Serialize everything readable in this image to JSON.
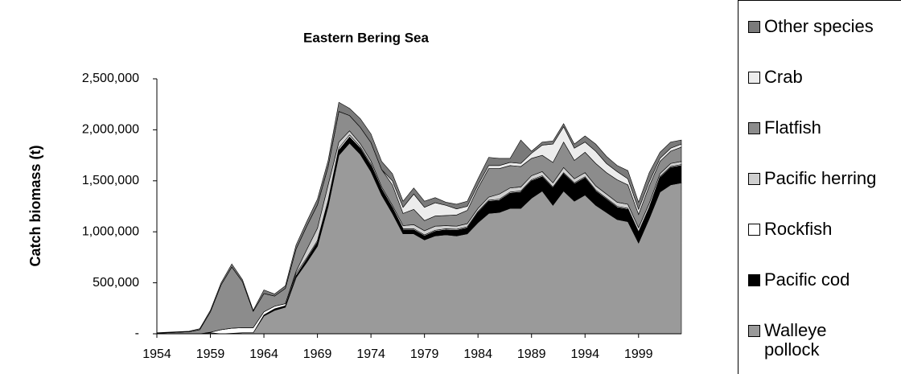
{
  "chart_data": {
    "type": "stacked_area",
    "title": "Eastern Bering Sea",
    "y_label": "Catch biomass (t)",
    "categories": [
      "1954",
      null,
      null,
      null,
      null,
      "1959",
      null,
      null,
      null,
      null,
      "1964",
      null,
      null,
      null,
      null,
      "1969",
      null,
      null,
      null,
      null,
      "1974",
      null,
      null,
      null,
      null,
      "1979",
      null,
      null,
      null,
      null,
      "1984",
      null,
      null,
      null,
      null,
      "1989",
      null,
      null,
      null,
      null,
      "1994",
      null,
      null,
      null,
      null,
      "1999",
      null,
      null,
      null,
      null
    ],
    "ylim": [
      0,
      2500000
    ],
    "yticks": [
      {
        "value": 0,
        "label": "-"
      },
      {
        "value": 500000,
        "label": "500,000"
      },
      {
        "value": 1000000,
        "label": "1,000,000"
      },
      {
        "value": 1500000,
        "label": "1,500,000"
      },
      {
        "value": 2000000,
        "label": "2,000,000"
      },
      {
        "value": 2500000,
        "label": "2,500,000"
      }
    ],
    "series": [
      {
        "name": "Walleye pollock",
        "color": "#9a9a9a",
        "values": [
          0,
          0,
          0,
          0,
          0,
          10000,
          0,
          5000,
          10000,
          10000,
          175000,
          230000,
          260000,
          550000,
          700000,
          860000,
          1250000,
          1750000,
          1870000,
          1760000,
          1590000,
          1360000,
          1180000,
          980000,
          980000,
          920000,
          960000,
          970000,
          960000,
          980000,
          1090000,
          1180000,
          1190000,
          1230000,
          1230000,
          1330000,
          1400000,
          1260000,
          1400000,
          1300000,
          1360000,
          1260000,
          1190000,
          1120000,
          1100000,
          890000,
          1130000,
          1390000,
          1460000,
          1480000
        ]
      },
      {
        "name": "Pacific cod",
        "color": "#000000",
        "values": [
          0,
          0,
          0,
          0,
          0,
          0,
          0,
          0,
          0,
          0,
          10000,
          15000,
          15000,
          20000,
          30000,
          40000,
          40000,
          50000,
          60000,
          60000,
          60000,
          50000,
          50000,
          40000,
          40000,
          40000,
          45000,
          50000,
          55000,
          60000,
          100000,
          120000,
          120000,
          150000,
          160000,
          170000,
          140000,
          170000,
          170000,
          170000,
          170000,
          140000,
          130000,
          120000,
          120000,
          100000,
          100000,
          140000,
          170000,
          170000
        ]
      },
      {
        "name": "Rockfish",
        "color": "#ffffff",
        "values": [
          0,
          0,
          0,
          0,
          0,
          5000,
          40000,
          50000,
          50000,
          50000,
          30000,
          25000,
          20000,
          20000,
          15000,
          15000,
          20000,
          20000,
          20000,
          15000,
          15000,
          10000,
          10000,
          10000,
          10000,
          10000,
          10000,
          10000,
          10000,
          10000,
          10000,
          10000,
          10000,
          10000,
          10000,
          10000,
          10000,
          10000,
          10000,
          10000,
          10000,
          10000,
          10000,
          10000,
          10000,
          10000,
          10000,
          10000,
          10000,
          10000
        ]
      },
      {
        "name": "Pacific herring",
        "color": "#cfcfcf",
        "values": [
          0,
          0,
          0,
          0,
          0,
          0,
          0,
          0,
          0,
          0,
          0,
          0,
          0,
          20000,
          80000,
          120000,
          150000,
          60000,
          40000,
          30000,
          30000,
          20000,
          20000,
          30000,
          40000,
          40000,
          40000,
          30000,
          30000,
          30000,
          30000,
          30000,
          50000,
          40000,
          40000,
          40000,
          40000,
          40000,
          50000,
          40000,
          40000,
          40000,
          40000,
          40000,
          40000,
          40000,
          40000,
          30000,
          30000,
          30000
        ]
      },
      {
        "name": "Flatfish",
        "color": "#8c8c8c",
        "values": [
          5000,
          10000,
          15000,
          20000,
          40000,
          200000,
          440000,
          600000,
          450000,
          160000,
          180000,
          100000,
          150000,
          220000,
          230000,
          230000,
          180000,
          300000,
          150000,
          160000,
          180000,
          170000,
          200000,
          120000,
          150000,
          100000,
          100000,
          100000,
          110000,
          130000,
          200000,
          280000,
          250000,
          220000,
          200000,
          170000,
          160000,
          200000,
          250000,
          180000,
          200000,
          220000,
          210000,
          220000,
          190000,
          130000,
          170000,
          120000,
          120000,
          140000
        ]
      },
      {
        "name": "Crab",
        "color": "#ececec",
        "values": [
          0,
          0,
          0,
          0,
          0,
          0,
          0,
          0,
          0,
          0,
          0,
          0,
          0,
          0,
          0,
          0,
          0,
          0,
          0,
          0,
          0,
          0,
          40000,
          60000,
          150000,
          130000,
          130000,
          100000,
          60000,
          40000,
          30000,
          30000,
          30000,
          30000,
          30000,
          50000,
          100000,
          180000,
          150000,
          120000,
          100000,
          120000,
          90000,
          80000,
          60000,
          50000,
          40000,
          30000,
          30000,
          30000
        ]
      },
      {
        "name": "Other species",
        "color": "#7a7a7a",
        "values": [
          5000,
          5000,
          5000,
          5000,
          10000,
          15000,
          20000,
          30000,
          20000,
          10000,
          35000,
          20000,
          25000,
          40000,
          45000,
          55000,
          60000,
          90000,
          70000,
          85000,
          85000,
          80000,
          70000,
          60000,
          60000,
          60000,
          50000,
          30000,
          45000,
          50000,
          60000,
          80000,
          70000,
          40000,
          230000,
          20000,
          30000,
          30000,
          30000,
          40000,
          60000,
          70000,
          70000,
          60000,
          80000,
          70000,
          90000,
          60000,
          60000,
          40000
        ]
      }
    ]
  }
}
